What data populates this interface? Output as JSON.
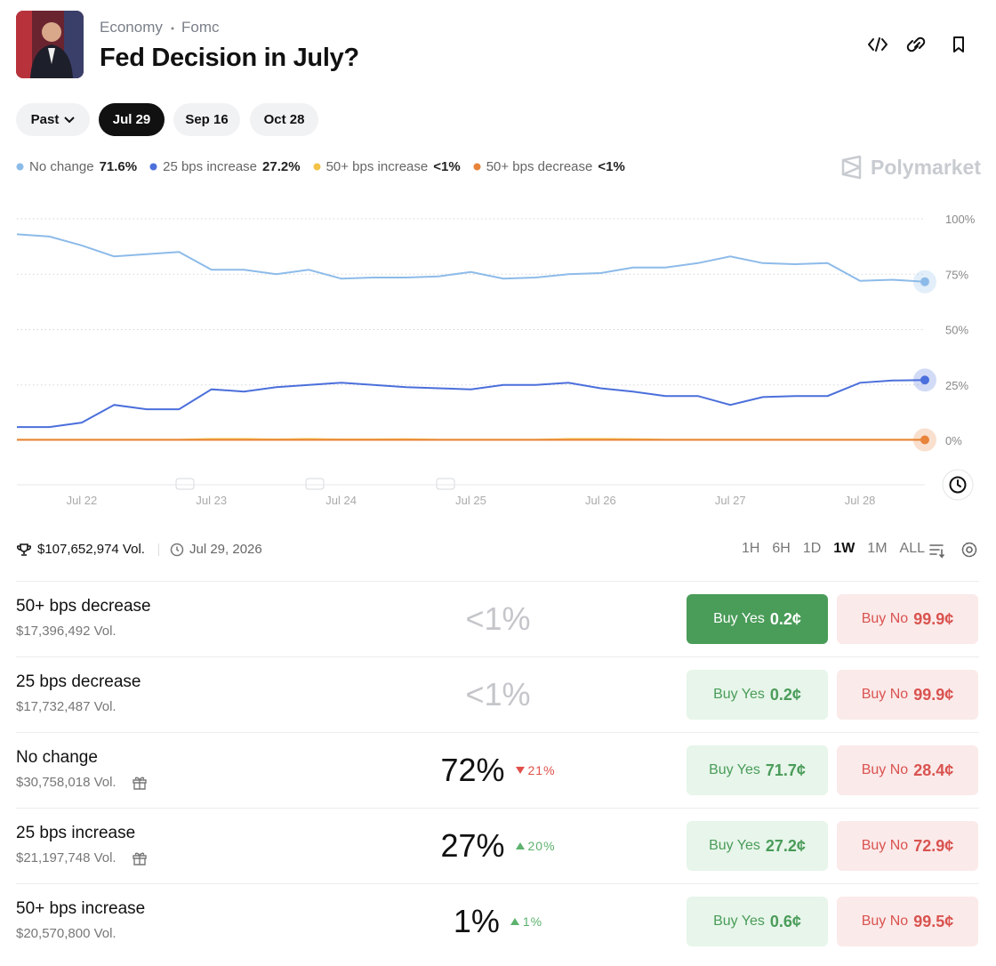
{
  "header": {
    "category": "Economy",
    "subcategory": "Fomc",
    "title": "Fed Decision in July?"
  },
  "date_tabs": {
    "items": [
      "Past",
      "Jul 29",
      "Sep 16",
      "Oct 28"
    ],
    "selected": 1
  },
  "watermark": "Polymarket",
  "chart_data": {
    "type": "line",
    "categories": [
      null,
      null,
      "Jul 22",
      null,
      null,
      null,
      "Jul 23",
      null,
      null,
      null,
      "Jul 24",
      null,
      null,
      null,
      "Jul 25",
      null,
      null,
      null,
      "Jul 26",
      null,
      null,
      null,
      "Jul 27",
      null,
      null,
      null,
      "Jul 28",
      null,
      null
    ],
    "series": [
      {
        "name": "No change",
        "color": "#8dbbe9",
        "legend_label": "71.6%",
        "values": [
          93,
          92,
          88,
          83,
          84,
          85,
          77,
          77,
          75,
          77,
          73,
          73.5,
          73.5,
          74,
          76,
          73,
          73.5,
          75,
          75.5,
          78,
          78,
          80,
          83,
          80,
          79.5,
          80,
          72,
          72.5,
          71.6
        ]
      },
      {
        "name": "25 bps increase",
        "color": "#4b6fdb",
        "legend_label": "27.2%",
        "values": [
          6,
          6,
          8,
          16,
          14,
          14,
          23,
          22,
          24,
          25,
          26,
          25,
          24,
          23.5,
          23,
          25,
          25,
          26,
          23.5,
          22,
          20,
          20,
          16,
          19.5,
          20,
          20,
          26,
          27,
          27.2
        ]
      },
      {
        "name": "50+ bps increase",
        "color": "#f3c246",
        "legend_label": "<1%",
        "values": [
          0.3,
          0.3,
          0.3,
          0.3,
          0.3,
          0.3,
          0.6,
          0.6,
          0.4,
          0.6,
          0.4,
          0.4,
          0.5,
          0.3,
          0.3,
          0.3,
          0.3,
          0.6,
          0.6,
          0.5,
          0.3,
          0.3,
          0.3,
          0.3,
          0.3,
          0.3,
          0.3,
          0.3,
          0.3
        ]
      },
      {
        "name": "50+ bps decrease",
        "color": "#e8833a",
        "legend_label": "<1%",
        "values": [
          0.2,
          0.2,
          0.2,
          0.2,
          0.2,
          0.2,
          0.2,
          0.2,
          0.2,
          0.2,
          0.2,
          0.2,
          0.2,
          0.2,
          0.2,
          0.2,
          0.2,
          0.2,
          0.2,
          0.2,
          0.2,
          0.2,
          0.2,
          0.2,
          0.2,
          0.2,
          0.2,
          0.2,
          0.2
        ]
      }
    ],
    "ylim": [
      0,
      100
    ],
    "yticks": [
      {
        "value": 0,
        "label": "0%"
      },
      {
        "value": 25,
        "label": "25%"
      },
      {
        "value": 50,
        "label": "50%"
      },
      {
        "value": 75,
        "label": "75%"
      },
      {
        "value": 100,
        "label": "100%"
      }
    ],
    "grid": true
  },
  "stats": {
    "volume": "$107,652,974 Vol.",
    "end_date": "Jul 29, 2026"
  },
  "time_ranges": {
    "items": [
      "1H",
      "6H",
      "1D",
      "1W",
      "1M",
      "ALL"
    ],
    "selected": 3
  },
  "buttons": {
    "yes": "Buy Yes",
    "no": "Buy No"
  },
  "outcomes": [
    {
      "name": "50+ bps decrease",
      "volume": "$17,396,492 Vol.",
      "chance": "<1%",
      "change": null,
      "reward": false,
      "yes_price": "0.2¢",
      "no_price": "99.9¢",
      "active": true
    },
    {
      "name": "25 bps decrease",
      "volume": "$17,732,487 Vol.",
      "chance": "<1%",
      "change": null,
      "reward": false,
      "yes_price": "0.2¢",
      "no_price": "99.9¢",
      "active": false
    },
    {
      "name": "No change",
      "volume": "$30,758,018 Vol.",
      "chance": "72%",
      "change": {
        "direction": "down",
        "label": "21%"
      },
      "reward": true,
      "yes_price": "71.7¢",
      "no_price": "28.4¢",
      "active": false
    },
    {
      "name": "25 bps increase",
      "volume": "$21,197,748 Vol.",
      "chance": "27%",
      "change": {
        "direction": "up",
        "label": "20%"
      },
      "reward": true,
      "yes_price": "27.2¢",
      "no_price": "72.9¢",
      "active": false
    },
    {
      "name": "50+ bps increase",
      "volume": "$20,570,800 Vol.",
      "chance": "1%",
      "change": {
        "direction": "up",
        "label": "1%"
      },
      "reward": false,
      "yes_price": "0.6¢",
      "no_price": "99.5¢",
      "active": false
    }
  ]
}
